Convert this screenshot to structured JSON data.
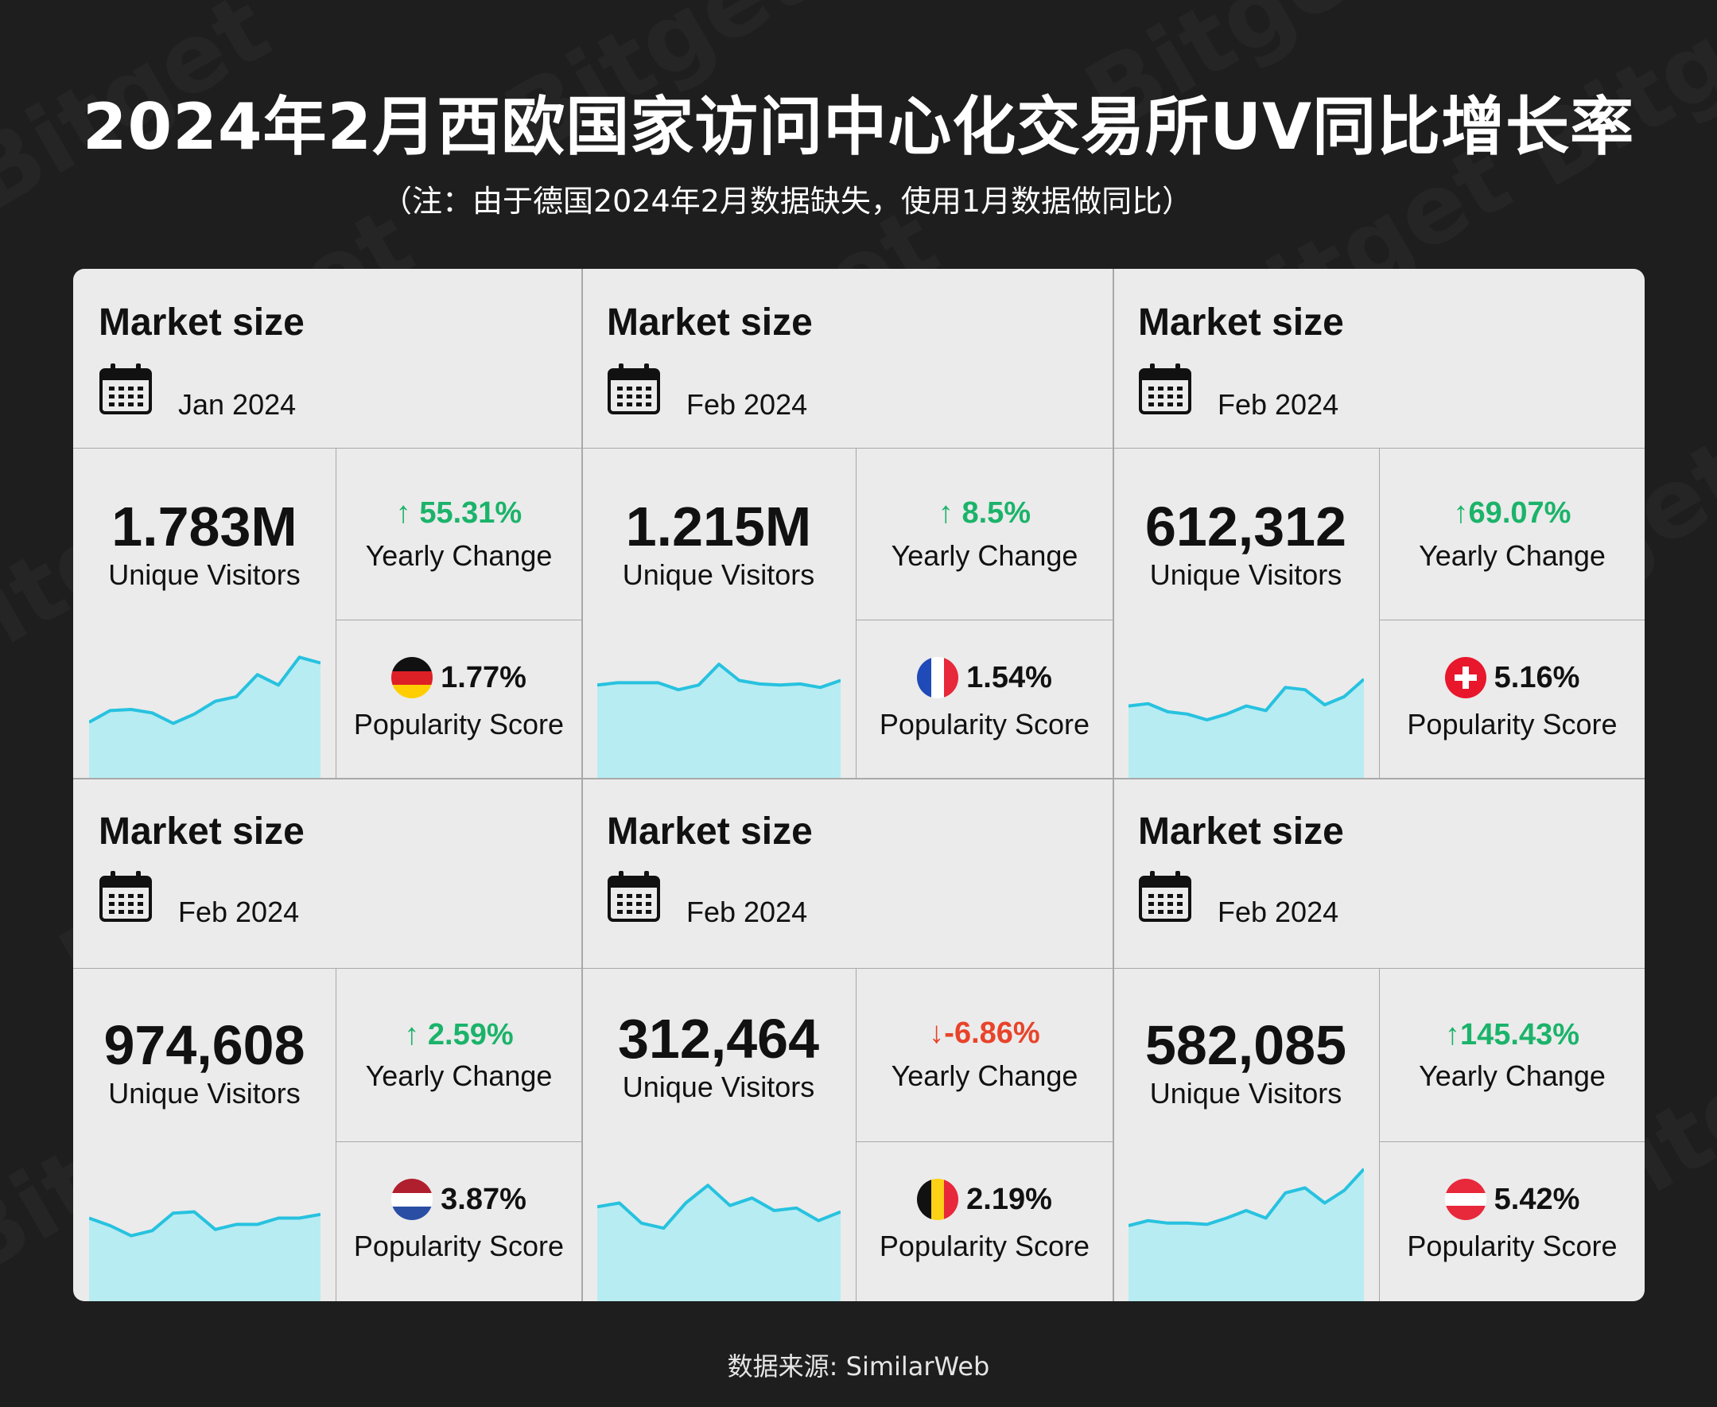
{
  "title": "2024年2月西欧国家访问中心化交易所UV同比增长率",
  "subtitle": "（注：由于德国2024年2月数据缺失，使用1月数据做同比）",
  "watermark_text": "Bitget",
  "source": "数据来源: SimilarWeb",
  "colors": {
    "background": "#1e1e1e",
    "panel": "#ebebeb",
    "up": "#1bb36a",
    "down": "#e8432a",
    "spark_line": "#27c2df",
    "spark_fill": "#b7ecf2"
  },
  "cards": [
    {
      "heading": "Market size",
      "date": "Jan 2024",
      "calendar_icon": "calendar-icon",
      "visitors": "1.783M",
      "visitors_label": "Unique Visitors",
      "change": "↑ 55.31%",
      "change_dir": "up",
      "change_label": "Yearly Change",
      "popularity": "1.77%",
      "popularity_label": "Popularity Score",
      "flag": "germany-flag-icon",
      "spark": [
        48,
        58,
        59,
        56,
        47,
        55,
        66,
        70,
        89,
        80,
        104,
        99
      ]
    },
    {
      "heading": "Market size",
      "date": "Feb 2024",
      "calendar_icon": "calendar-icon",
      "visitors": "1.215M",
      "visitors_label": "Unique Visitors",
      "change": "↑ 8.5%",
      "change_dir": "up",
      "change_label": "Yearly Change",
      "popularity": "1.54%",
      "popularity_label": "Popularity Score",
      "flag": "france-flag-icon",
      "spark": [
        80,
        82,
        82,
        82,
        76,
        80,
        98,
        84,
        81,
        80,
        81,
        78,
        84
      ]
    },
    {
      "heading": "Market size",
      "date": "Feb 2024",
      "calendar_icon": "calendar-icon",
      "visitors": "612,312",
      "visitors_label": "Unique Visitors",
      "change": "↑69.07%",
      "change_dir": "up",
      "change_label": "Yearly Change",
      "popularity": "5.16%",
      "popularity_label": "Popularity Score",
      "flag": "switzerland-flag-icon",
      "spark": [
        62,
        64,
        57,
        55,
        50,
        55,
        62,
        58,
        78,
        76,
        63,
        70,
        85
      ]
    },
    {
      "heading": "Market size",
      "date": "Feb 2024",
      "calendar_icon": "calendar-icon",
      "visitors": "974,608",
      "visitors_label": "Unique Visitors",
      "change": "↑ 2.59%",
      "change_dir": "up",
      "change_label": "Yearly Change",
      "popularity": "3.87%",
      "popularity_label": "Popularity Score",
      "flag": "netherlands-flag-icon",
      "spark": [
        66,
        60,
        52,
        56,
        70,
        71,
        57,
        61,
        61,
        66,
        66,
        69
      ]
    },
    {
      "heading": "Market size",
      "date": "Feb 2024",
      "calendar_icon": "calendar-icon",
      "visitors": "312,464",
      "visitors_label": "Unique Visitors",
      "change": "↓-6.86%",
      "change_dir": "down",
      "change_label": "Yearly Change",
      "popularity": "2.19%",
      "popularity_label": "Popularity Score",
      "flag": "belgium-flag-icon",
      "spark": [
        75,
        78,
        62,
        58,
        78,
        92,
        76,
        82,
        72,
        74,
        64,
        71
      ]
    },
    {
      "heading": "Market size",
      "date": "Feb 2024",
      "calendar_icon": "calendar-icon",
      "visitors": "582,085",
      "visitors_label": "Unique Visitors",
      "change": "↑145.43%",
      "change_dir": "up",
      "change_label": "Yearly Change",
      "popularity": "5.42%",
      "popularity_label": "Popularity Score",
      "flag": "austria-flag-icon",
      "spark": [
        60,
        64,
        62,
        62,
        61,
        66,
        72,
        66,
        86,
        90,
        78,
        88,
        105
      ]
    }
  ]
}
